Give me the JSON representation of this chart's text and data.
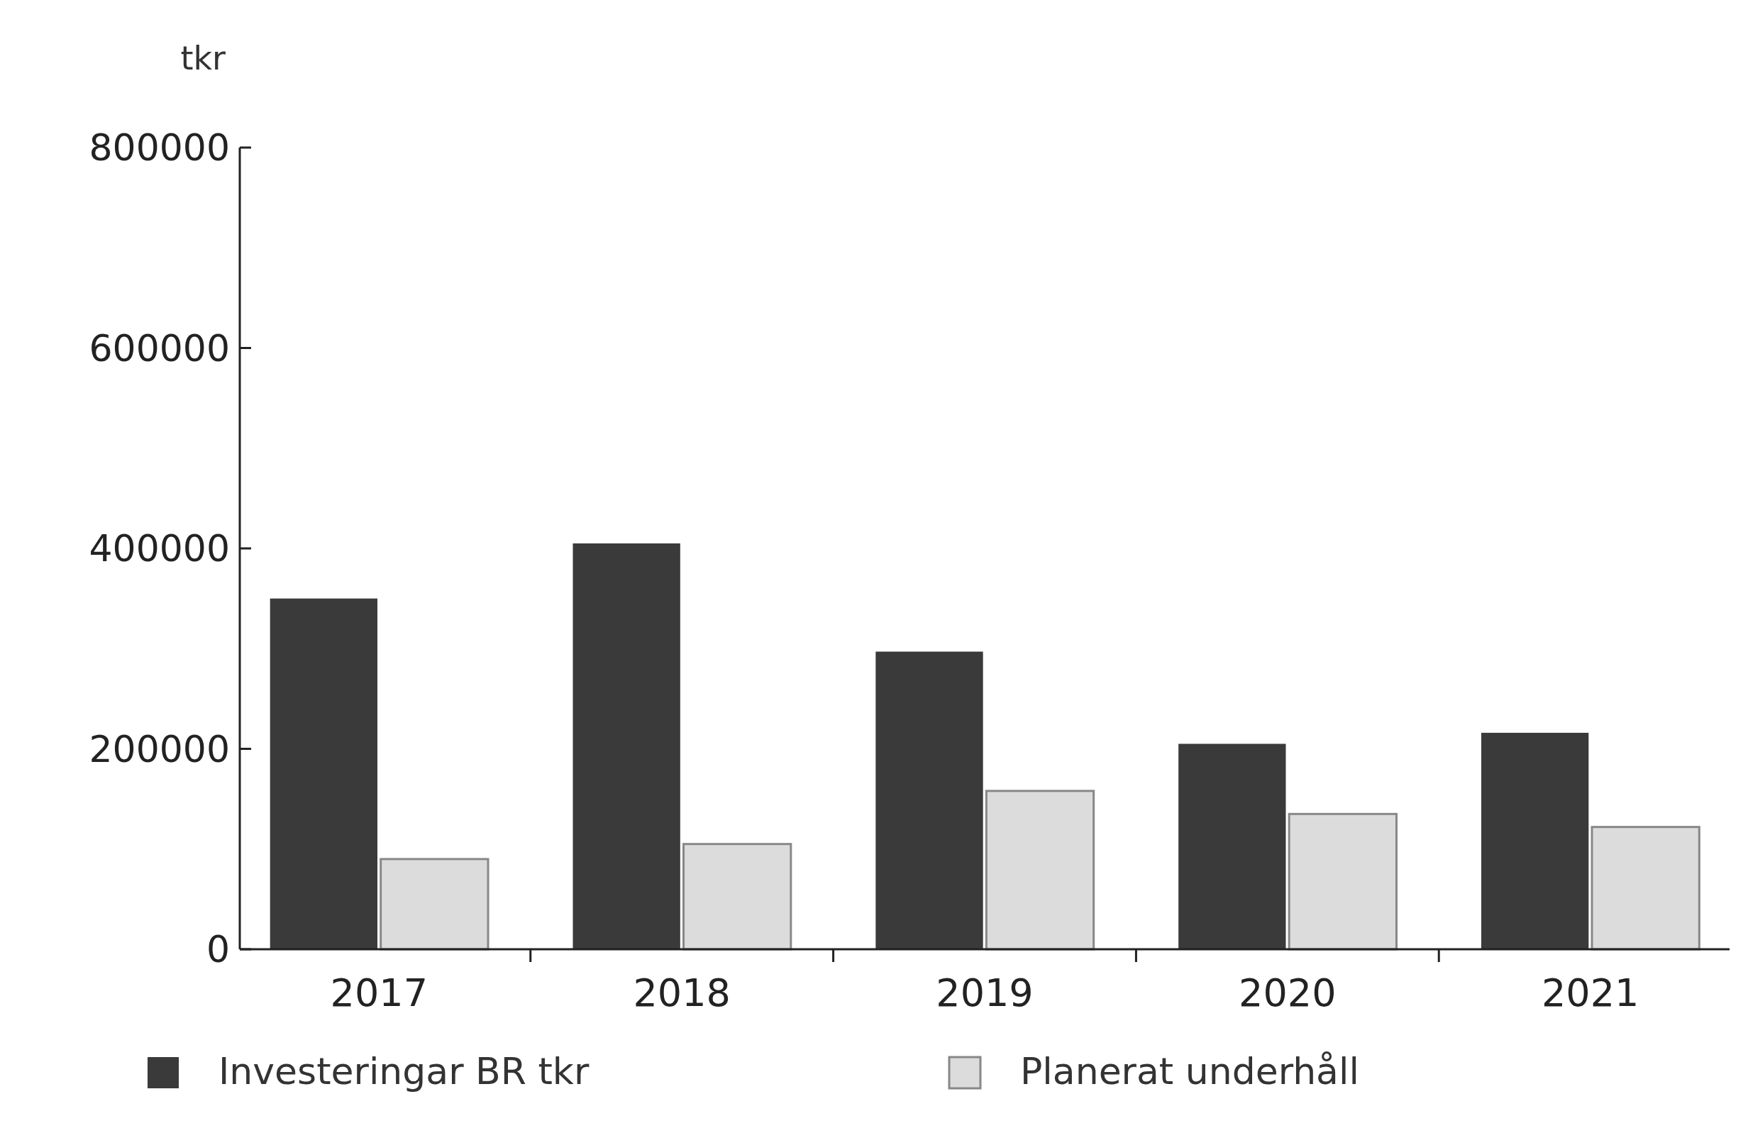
{
  "chart_data": {
    "type": "bar",
    "ylabel": "tkr",
    "categories": [
      "2017",
      "2018",
      "2019",
      "2020",
      "2021"
    ],
    "series": [
      {
        "name": "Investeringar BR tkr",
        "color": "#3a3a3a",
        "values": [
          350000,
          405000,
          297000,
          205000,
          216000
        ]
      },
      {
        "name": "Planerat underhåll",
        "color": "#dcdcdc",
        "values": [
          90000,
          105000,
          158000,
          135000,
          122000
        ]
      }
    ],
    "ylim": [
      0,
      800000
    ],
    "yticks": [
      0,
      200000,
      400000,
      600000,
      800000
    ],
    "grid": false,
    "legend": "bottom"
  }
}
